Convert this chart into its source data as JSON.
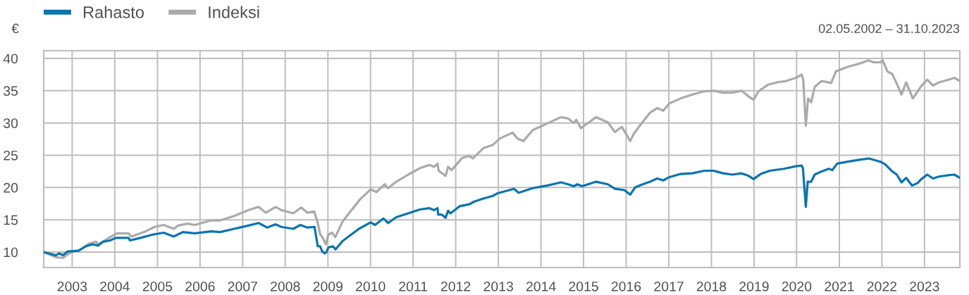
{
  "chart_data": {
    "type": "line",
    "subtitle": "02.05.2002 – 31.10.2023",
    "ylabel": "€",
    "series": [
      {
        "name": "Rahasto",
        "color": "#0a74b0",
        "x": [
          "2002-05-02",
          "2002-08-14",
          "2002-09-13",
          "2002-10-14",
          "2002-11-24",
          "2003-02-24",
          "2003-04-30",
          "2003-06-24",
          "2003-08-12",
          "2003-09-24",
          "2003-11-22",
          "2004-01-10",
          "2004-04-28",
          "2004-05-10",
          "2004-08-08",
          "2004-11-20",
          "2005-02-24",
          "2005-05-20",
          "2005-08-07",
          "2005-11-17",
          "2006-04-05",
          "2006-06-22",
          "2006-10-21",
          "2007-02-19",
          "2007-05-18",
          "2007-07-30",
          "2007-10-11",
          "2007-11-28",
          "2008-03-10",
          "2008-05-10",
          "2008-07-09",
          "2008-09-08",
          "2008-10-06",
          "2008-10-26",
          "2008-11-13",
          "2008-12-06",
          "2008-12-20",
          "2009-01-05",
          "2009-02-13",
          "2009-03-07",
          "2009-05-06",
          "2009-07-05",
          "2009-09-24",
          "2010-01-02",
          "2010-02-09",
          "2010-04-22",
          "2010-06-01",
          "2010-08-10",
          "2010-11-20",
          "2011-03-01",
          "2011-05-21",
          "2011-06-30",
          "2011-07-30",
          "2011-08-04",
          "2011-09-05",
          "2011-10-06",
          "2011-10-28",
          "2011-11-17",
          "2012-02-04",
          "2012-04-27",
          "2012-06-05",
          "2012-08-26",
          "2012-11-14",
          "2012-12-24",
          "2013-05-15",
          "2013-06-24",
          "2013-10-23",
          "2014-02-21",
          "2014-06-21",
          "2014-08-21",
          "2014-10-10",
          "2014-11-09",
          "2014-12-19",
          "2015-04-19",
          "2015-07-28",
          "2015-09-27",
          "2015-12-17",
          "2016-02-05",
          "2016-03-17",
          "2016-05-06",
          "2016-07-24",
          "2016-09-23",
          "2016-11-14",
          "2017-01-03",
          "2017-04-12",
          "2017-07-22",
          "2017-10-31",
          "2018-01-18",
          "2018-04-11",
          "2018-06-30",
          "2018-09-16",
          "2018-11-16",
          "2018-12-28",
          "2019-02-27",
          "2019-05-16",
          "2019-09-13",
          "2019-12-26",
          "2020-02-14",
          "2020-02-24",
          "2020-03-20",
          "2020-04-05",
          "2020-05-05",
          "2020-06-04",
          "2020-08-03",
          "2020-10-02",
          "2020-11-02",
          "2020-12-13",
          "2021-03-14",
          "2021-06-23",
          "2021-09-10",
          "2021-12-19",
          "2022-01-29",
          "2022-03-30",
          "2022-05-09",
          "2022-06-18",
          "2022-07-28",
          "2022-09-16",
          "2022-11-04",
          "2022-12-04",
          "2023-01-24",
          "2023-03-16",
          "2023-05-05",
          "2023-07-25",
          "2023-09-14",
          "2023-10-31"
        ],
        "values": [
          10.0,
          9.5,
          9.8,
          9.5,
          10.1,
          10.2,
          10.9,
          11.2,
          11.0,
          11.6,
          11.8,
          12.2,
          12.2,
          11.8,
          12.2,
          12.7,
          13.0,
          12.4,
          13.1,
          12.9,
          13.2,
          13.1,
          13.6,
          14.1,
          14.5,
          13.8,
          14.3,
          13.9,
          13.6,
          14.2,
          13.8,
          13.9,
          10.9,
          10.9,
          10.1,
          9.8,
          10.0,
          10.7,
          10.9,
          10.4,
          11.7,
          12.5,
          13.6,
          14.6,
          14.2,
          15.2,
          14.5,
          15.4,
          16.0,
          16.6,
          16.8,
          16.5,
          16.8,
          15.8,
          15.8,
          15.3,
          16.4,
          16.0,
          17.1,
          17.4,
          17.8,
          18.3,
          18.7,
          19.1,
          19.8,
          19.2,
          19.9,
          20.3,
          20.8,
          20.5,
          20.2,
          20.5,
          20.2,
          20.9,
          20.5,
          19.8,
          19.6,
          18.9,
          20.0,
          20.4,
          20.9,
          21.4,
          21.1,
          21.6,
          22.1,
          22.2,
          22.6,
          22.6,
          22.2,
          22.0,
          22.2,
          21.8,
          21.3,
          22.1,
          22.6,
          22.9,
          23.3,
          23.4,
          23.0,
          17.0,
          20.9,
          20.9,
          22.0,
          22.5,
          22.9,
          22.7,
          23.7,
          24.0,
          24.3,
          24.5,
          24.0,
          23.6,
          22.5,
          22.0,
          20.8,
          21.5,
          20.3,
          20.7,
          21.3,
          22.0,
          21.4,
          21.7,
          21.9,
          22.0,
          21.5
        ]
      },
      {
        "name": "Indeksi",
        "color": "#aaaaaa",
        "x": [
          "2002-05-02",
          "2002-08-14",
          "2002-10-14",
          "2002-12-14",
          "2003-03-02",
          "2003-05-26",
          "2003-07-24",
          "2003-08-12",
          "2003-11-22",
          "2004-01-22",
          "2004-04-28",
          "2004-05-22",
          "2004-09-20",
          "2004-12-08",
          "2005-02-24",
          "2005-05-20",
          "2005-06-25",
          "2005-09-16",
          "2005-11-17",
          "2006-04-05",
          "2006-06-22",
          "2006-10-21",
          "2007-02-19",
          "2007-05-18",
          "2007-07-18",
          "2007-10-11",
          "2007-11-28",
          "2008-03-10",
          "2008-05-17",
          "2008-07-09",
          "2008-09-06",
          "2008-10-06",
          "2008-10-26",
          "2008-11-14",
          "2008-12-15",
          "2009-01-05",
          "2009-02-06",
          "2009-03-05",
          "2009-05-06",
          "2009-07-05",
          "2009-10-05",
          "2010-01-02",
          "2010-02-21",
          "2010-05-03",
          "2010-06-01",
          "2010-08-10",
          "2010-11-20",
          "2011-03-01",
          "2011-05-21",
          "2011-06-30",
          "2011-07-30",
          "2011-08-08",
          "2011-10-06",
          "2011-10-28",
          "2011-11-27",
          "2012-02-27",
          "2012-04-27",
          "2012-05-27",
          "2012-08-26",
          "2012-11-14",
          "2013-01-14",
          "2013-05-04",
          "2013-06-13",
          "2013-08-03",
          "2013-10-23",
          "2014-02-21",
          "2014-06-21",
          "2014-08-21",
          "2014-10-10",
          "2014-10-30",
          "2014-12-09",
          "2015-04-19",
          "2015-07-28",
          "2015-09-27",
          "2015-11-25",
          "2016-02-05",
          "2016-03-06",
          "2016-05-06",
          "2016-07-24",
          "2016-09-23",
          "2016-11-14",
          "2017-01-03",
          "2017-04-12",
          "2017-07-22",
          "2017-10-31",
          "2018-01-18",
          "2018-04-11",
          "2018-06-30",
          "2018-09-16",
          "2018-11-16",
          "2018-12-28",
          "2019-02-09",
          "2019-04-28",
          "2019-07-16",
          "2019-10-04",
          "2019-12-26",
          "2020-02-14",
          "2020-02-27",
          "2020-03-20",
          "2020-04-08",
          "2020-05-05",
          "2020-06-04",
          "2020-08-03",
          "2020-10-23",
          "2020-12-03",
          "2021-03-14",
          "2021-06-23",
          "2021-09-10",
          "2021-10-20",
          "2021-12-19",
          "2022-01-08",
          "2022-02-17",
          "2022-03-30",
          "2022-05-09",
          "2022-06-18",
          "2022-07-28",
          "2022-09-23",
          "2022-11-04",
          "2022-12-04",
          "2023-01-24",
          "2023-03-16",
          "2023-05-05",
          "2023-07-25",
          "2023-09-14",
          "2023-10-31"
        ],
        "values": [
          10.0,
          9.2,
          9.1,
          9.9,
          10.3,
          11.3,
          11.6,
          11.2,
          12.3,
          12.9,
          12.9,
          12.4,
          13.2,
          13.9,
          14.2,
          13.6,
          14.1,
          14.4,
          14.2,
          14.9,
          14.9,
          15.6,
          16.5,
          17.0,
          16.1,
          17.0,
          16.5,
          16.0,
          16.9,
          16.1,
          16.3,
          14.5,
          12.8,
          12.3,
          11.2,
          12.7,
          13.0,
          12.3,
          14.7,
          16.1,
          18.2,
          19.7,
          19.3,
          20.5,
          19.9,
          20.9,
          22.0,
          23.0,
          23.5,
          23.2,
          23.7,
          22.6,
          21.8,
          23.2,
          22.7,
          24.6,
          24.9,
          24.5,
          26.1,
          26.6,
          27.6,
          28.5,
          27.6,
          27.2,
          28.9,
          29.9,
          30.9,
          30.7,
          30.0,
          30.5,
          29.2,
          30.9,
          30.1,
          28.6,
          29.4,
          27.2,
          28.3,
          29.8,
          31.6,
          32.3,
          31.9,
          33.0,
          33.8,
          34.4,
          34.9,
          35.0,
          34.7,
          34.7,
          35.0,
          34.1,
          33.6,
          34.9,
          35.9,
          36.3,
          36.5,
          37.0,
          37.5,
          36.7,
          29.6,
          33.8,
          33.2,
          35.6,
          36.5,
          36.2,
          38.0,
          38.7,
          39.2,
          39.7,
          39.4,
          39.4,
          39.7,
          38.0,
          37.6,
          36.1,
          34.4,
          36.3,
          33.8,
          34.9,
          35.7,
          36.7,
          35.8,
          36.3,
          36.7,
          37.0,
          36.5
        ]
      }
    ],
    "xlim": [
      "2002-05-02",
      "2023-10-31"
    ],
    "xticks": [
      {
        "value": "2003-01-01",
        "label": "2003"
      },
      {
        "value": "2004-01-01",
        "label": "2004"
      },
      {
        "value": "2005-01-01",
        "label": "2005"
      },
      {
        "value": "2006-01-01",
        "label": "2006"
      },
      {
        "value": "2007-01-01",
        "label": "2007"
      },
      {
        "value": "2008-01-01",
        "label": "2008"
      },
      {
        "value": "2009-01-01",
        "label": "2009"
      },
      {
        "value": "2010-01-01",
        "label": "2010"
      },
      {
        "value": "2011-01-01",
        "label": "2011"
      },
      {
        "value": "2012-01-01",
        "label": "2012"
      },
      {
        "value": "2013-01-01",
        "label": "2013"
      },
      {
        "value": "2014-01-01",
        "label": "2014"
      },
      {
        "value": "2015-01-01",
        "label": "2015"
      },
      {
        "value": "2016-01-01",
        "label": "2016"
      },
      {
        "value": "2017-01-01",
        "label": "2017"
      },
      {
        "value": "2018-01-01",
        "label": "2018"
      },
      {
        "value": "2019-01-01",
        "label": "2019"
      },
      {
        "value": "2020-01-01",
        "label": "2020"
      },
      {
        "value": "2021-01-01",
        "label": "2021"
      },
      {
        "value": "2022-01-01",
        "label": "2022"
      },
      {
        "value": "2023-01-01",
        "label": "2023"
      }
    ],
    "ylim": [
      7.6,
      41.2
    ],
    "yticks": [
      10,
      15,
      20,
      25,
      30,
      35,
      40
    ],
    "grid": true,
    "legend": "top left",
    "line_style": "solid"
  }
}
